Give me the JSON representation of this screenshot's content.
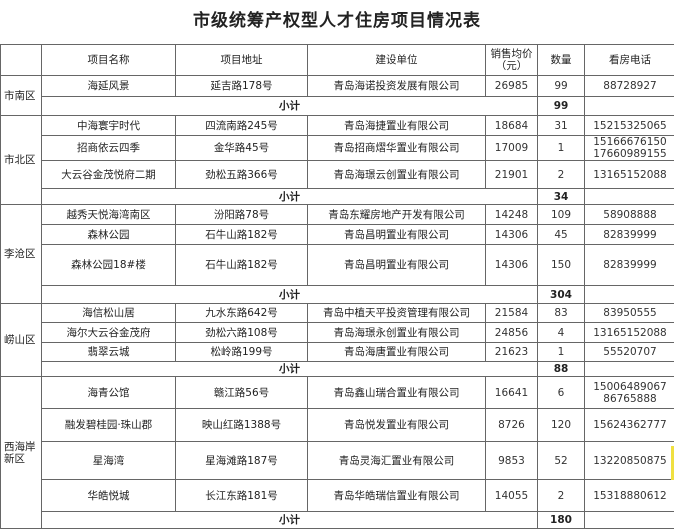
{
  "title": "市级统筹产权型人才住房项目情况表",
  "headers": {
    "name": "项目名称",
    "address": "项目地址",
    "developer": "建设单位",
    "price_line1": "销售均价",
    "price_line2": "（元）",
    "quantity": "数量",
    "phone": "看房电话"
  },
  "subtotal_label": "小计",
  "districts": [
    {
      "name": "市南区",
      "projects": [
        {
          "name": "海延风景",
          "address": "延吉路178号",
          "developer": "青岛海诺投资发展有限公司",
          "price": "26985",
          "quantity": "99",
          "phones": [
            "88728927"
          ]
        }
      ],
      "subtotal": "99"
    },
    {
      "name": "市北区",
      "projects": [
        {
          "name": "中海寰宇时代",
          "address": "四流南路245号",
          "developer": "青岛海捷置业有限公司",
          "price": "18684",
          "quantity": "31",
          "phones": [
            "15215325065"
          ]
        },
        {
          "name": "招商依云四季",
          "address": "金华路45号",
          "developer": "青岛招商熠华置业有限公司",
          "price": "17009",
          "quantity": "1",
          "phones": [
            "15166676150",
            "17660989155"
          ]
        },
        {
          "name": "大云谷金茂悦府二期",
          "address": "劲松五路366号",
          "developer": "青岛海璟云创置业有限公司",
          "price": "21901",
          "quantity": "2",
          "phones": [
            "13165152088"
          ]
        }
      ],
      "subtotal": "34"
    },
    {
      "name": "李沧区",
      "projects": [
        {
          "name": "越秀天悦海湾南区",
          "address": "汾阳路78号",
          "developer": "青岛东耀房地产开发有限公司",
          "price": "14248",
          "quantity": "109",
          "phones": [
            "58908888"
          ]
        },
        {
          "name": "森林公园",
          "address": "石牛山路182号",
          "developer": "青岛昌明置业有限公司",
          "price": "14306",
          "quantity": "45",
          "phones": [
            "82839999"
          ]
        },
        {
          "name": "森林公园18#楼",
          "address": "石牛山路182号",
          "developer": "青岛昌明置业有限公司",
          "price": "14306",
          "quantity": "150",
          "phones": [
            "82839999"
          ]
        }
      ],
      "subtotal": "304"
    },
    {
      "name": "崂山区",
      "projects": [
        {
          "name": "海信松山居",
          "address": "九水东路642号",
          "developer": "青岛中植天平投资管理有限公司",
          "price": "21584",
          "quantity": "83",
          "phones": [
            "83950555"
          ]
        },
        {
          "name": "海尔大云谷金茂府",
          "address": "劲松六路108号",
          "developer": "青岛海璟永创置业有限公司",
          "price": "24856",
          "quantity": "4",
          "phones": [
            "13165152088"
          ]
        },
        {
          "name": "翡翠云城",
          "address": "松岭路199号",
          "developer": "青岛海唐置业有限公司",
          "price": "21623",
          "quantity": "1",
          "phones": [
            "55520707"
          ]
        }
      ],
      "subtotal": "88"
    },
    {
      "name": "西海岸新区",
      "name_lines": [
        "西海岸",
        "新区"
      ],
      "projects": [
        {
          "name": "海青公馆",
          "address": "赣江路56号",
          "developer": "青岛鑫山瑞合置业有限公司",
          "price": "16641",
          "quantity": "6",
          "phones": [
            "15006489067",
            "86765888"
          ]
        },
        {
          "name": "融发碧桂园·珠山郡",
          "address": "映山红路1388号",
          "developer": "青岛悦发置业有限公司",
          "price": "8726",
          "quantity": "120",
          "phones": [
            "15624362777"
          ]
        },
        {
          "name": "星海湾",
          "address": "星海滩路187号",
          "developer": "青岛灵海汇置业有限公司",
          "price": "9853",
          "quantity": "52",
          "phones": [
            "13220850875"
          ]
        },
        {
          "name": "华皓悦城",
          "address": "长江东路181号",
          "developer": "青岛华皓瑞信置业有限公司",
          "price": "14055",
          "quantity": "2",
          "phones": [
            "15318880612"
          ]
        }
      ],
      "subtotal": "180"
    }
  ]
}
